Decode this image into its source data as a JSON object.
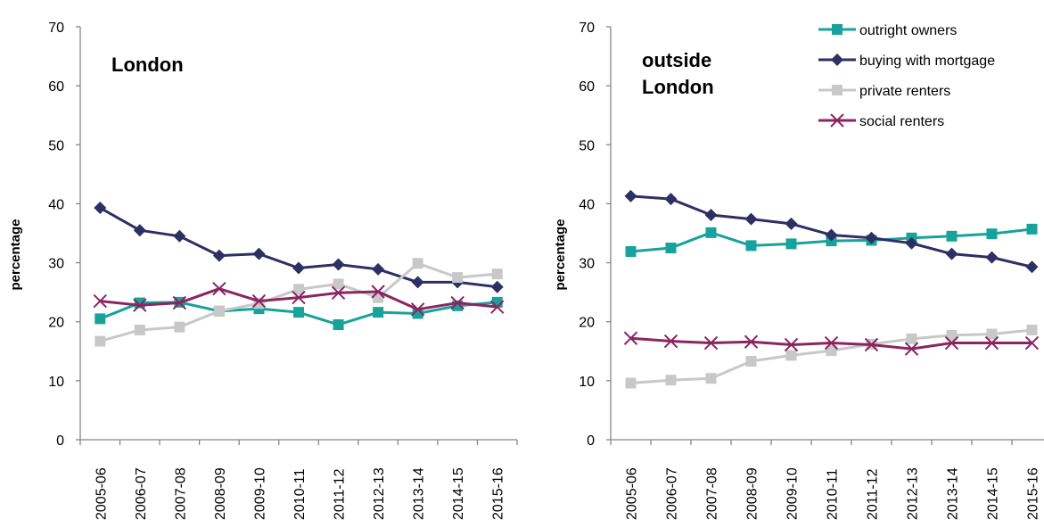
{
  "colors": {
    "outright_owners": "#17A29B",
    "buying_with_mortgage": "#2E2F63",
    "private_renters": "#C8C8C8",
    "social_renters": "#8B2561",
    "axis": "#868686"
  },
  "legend": [
    {
      "series": "outright_owners",
      "label": "outright owners",
      "marker": "square"
    },
    {
      "series": "buying_with_mortgage",
      "label": "buying with mortgage",
      "marker": "diamond"
    },
    {
      "series": "private_renters",
      "label": "private renters",
      "marker": "square"
    },
    {
      "series": "social_renters",
      "label": "social renters",
      "marker": "x"
    }
  ],
  "chart_data": [
    {
      "type": "line",
      "title": "London",
      "ylabel": "percentage",
      "xlabel": "",
      "ylim": [
        0,
        70
      ],
      "yticks": [
        0,
        10,
        20,
        30,
        40,
        50,
        60,
        70
      ],
      "grid": false,
      "categories": [
        "2005-06",
        "2006-07",
        "2007-08",
        "2008-09",
        "2009-10",
        "2010-11",
        "2011-12",
        "2012-13",
        "2013-14",
        "2014-15",
        "2015-16"
      ],
      "series": [
        {
          "key": "outright_owners",
          "name": "outright owners",
          "marker": "square",
          "values": [
            20.5,
            23.2,
            23.3,
            21.8,
            22.2,
            21.6,
            19.5,
            21.6,
            21.4,
            22.7,
            23.3
          ]
        },
        {
          "key": "buying_with_mortgage",
          "name": "buying with mortgage",
          "marker": "diamond",
          "values": [
            39.3,
            35.5,
            34.5,
            31.2,
            31.5,
            29.1,
            29.7,
            28.9,
            26.7,
            26.7,
            25.9
          ]
        },
        {
          "key": "private_renters",
          "name": "private renters",
          "marker": "square",
          "values": [
            16.7,
            18.6,
            19.1,
            21.8,
            23.1,
            25.5,
            26.4,
            24.1,
            29.9,
            27.5,
            28.1
          ]
        },
        {
          "key": "social_renters",
          "name": "social renters",
          "marker": "x",
          "values": [
            23.5,
            22.8,
            23.2,
            25.6,
            23.5,
            24.1,
            24.9,
            25.1,
            22.1,
            23.2,
            22.5
          ]
        }
      ]
    },
    {
      "type": "line",
      "title": "outside London",
      "title_lines": [
        "outside",
        "London"
      ],
      "ylabel": "percentage",
      "xlabel": "",
      "ylim": [
        0,
        70
      ],
      "yticks": [
        0,
        10,
        20,
        30,
        40,
        50,
        60,
        70
      ],
      "grid": false,
      "legend_position": "top-right",
      "categories": [
        "2005-06",
        "2006-07",
        "2007-08",
        "2008-09",
        "2009-10",
        "2010-11",
        "2011-12",
        "2012-13",
        "2013-14",
        "2014-15",
        "2015-16"
      ],
      "series": [
        {
          "key": "outright_owners",
          "name": "outright owners",
          "marker": "square",
          "values": [
            31.9,
            32.5,
            35.1,
            32.9,
            33.2,
            33.7,
            33.8,
            34.2,
            34.5,
            34.9,
            35.7
          ]
        },
        {
          "key": "buying_with_mortgage",
          "name": "buying with mortgage",
          "marker": "diamond",
          "values": [
            41.3,
            40.8,
            38.1,
            37.4,
            36.6,
            34.7,
            34.2,
            33.3,
            31.5,
            30.9,
            29.3
          ]
        },
        {
          "key": "private_renters",
          "name": "private renters",
          "marker": "square",
          "values": [
            9.6,
            10.1,
            10.4,
            13.3,
            14.3,
            15.1,
            16.2,
            17.1,
            17.7,
            17.9,
            18.6
          ]
        },
        {
          "key": "social_renters",
          "name": "social renters",
          "marker": "x",
          "values": [
            17.2,
            16.7,
            16.4,
            16.6,
            16.1,
            16.4,
            16.1,
            15.4,
            16.4,
            16.4,
            16.4
          ]
        }
      ]
    }
  ]
}
